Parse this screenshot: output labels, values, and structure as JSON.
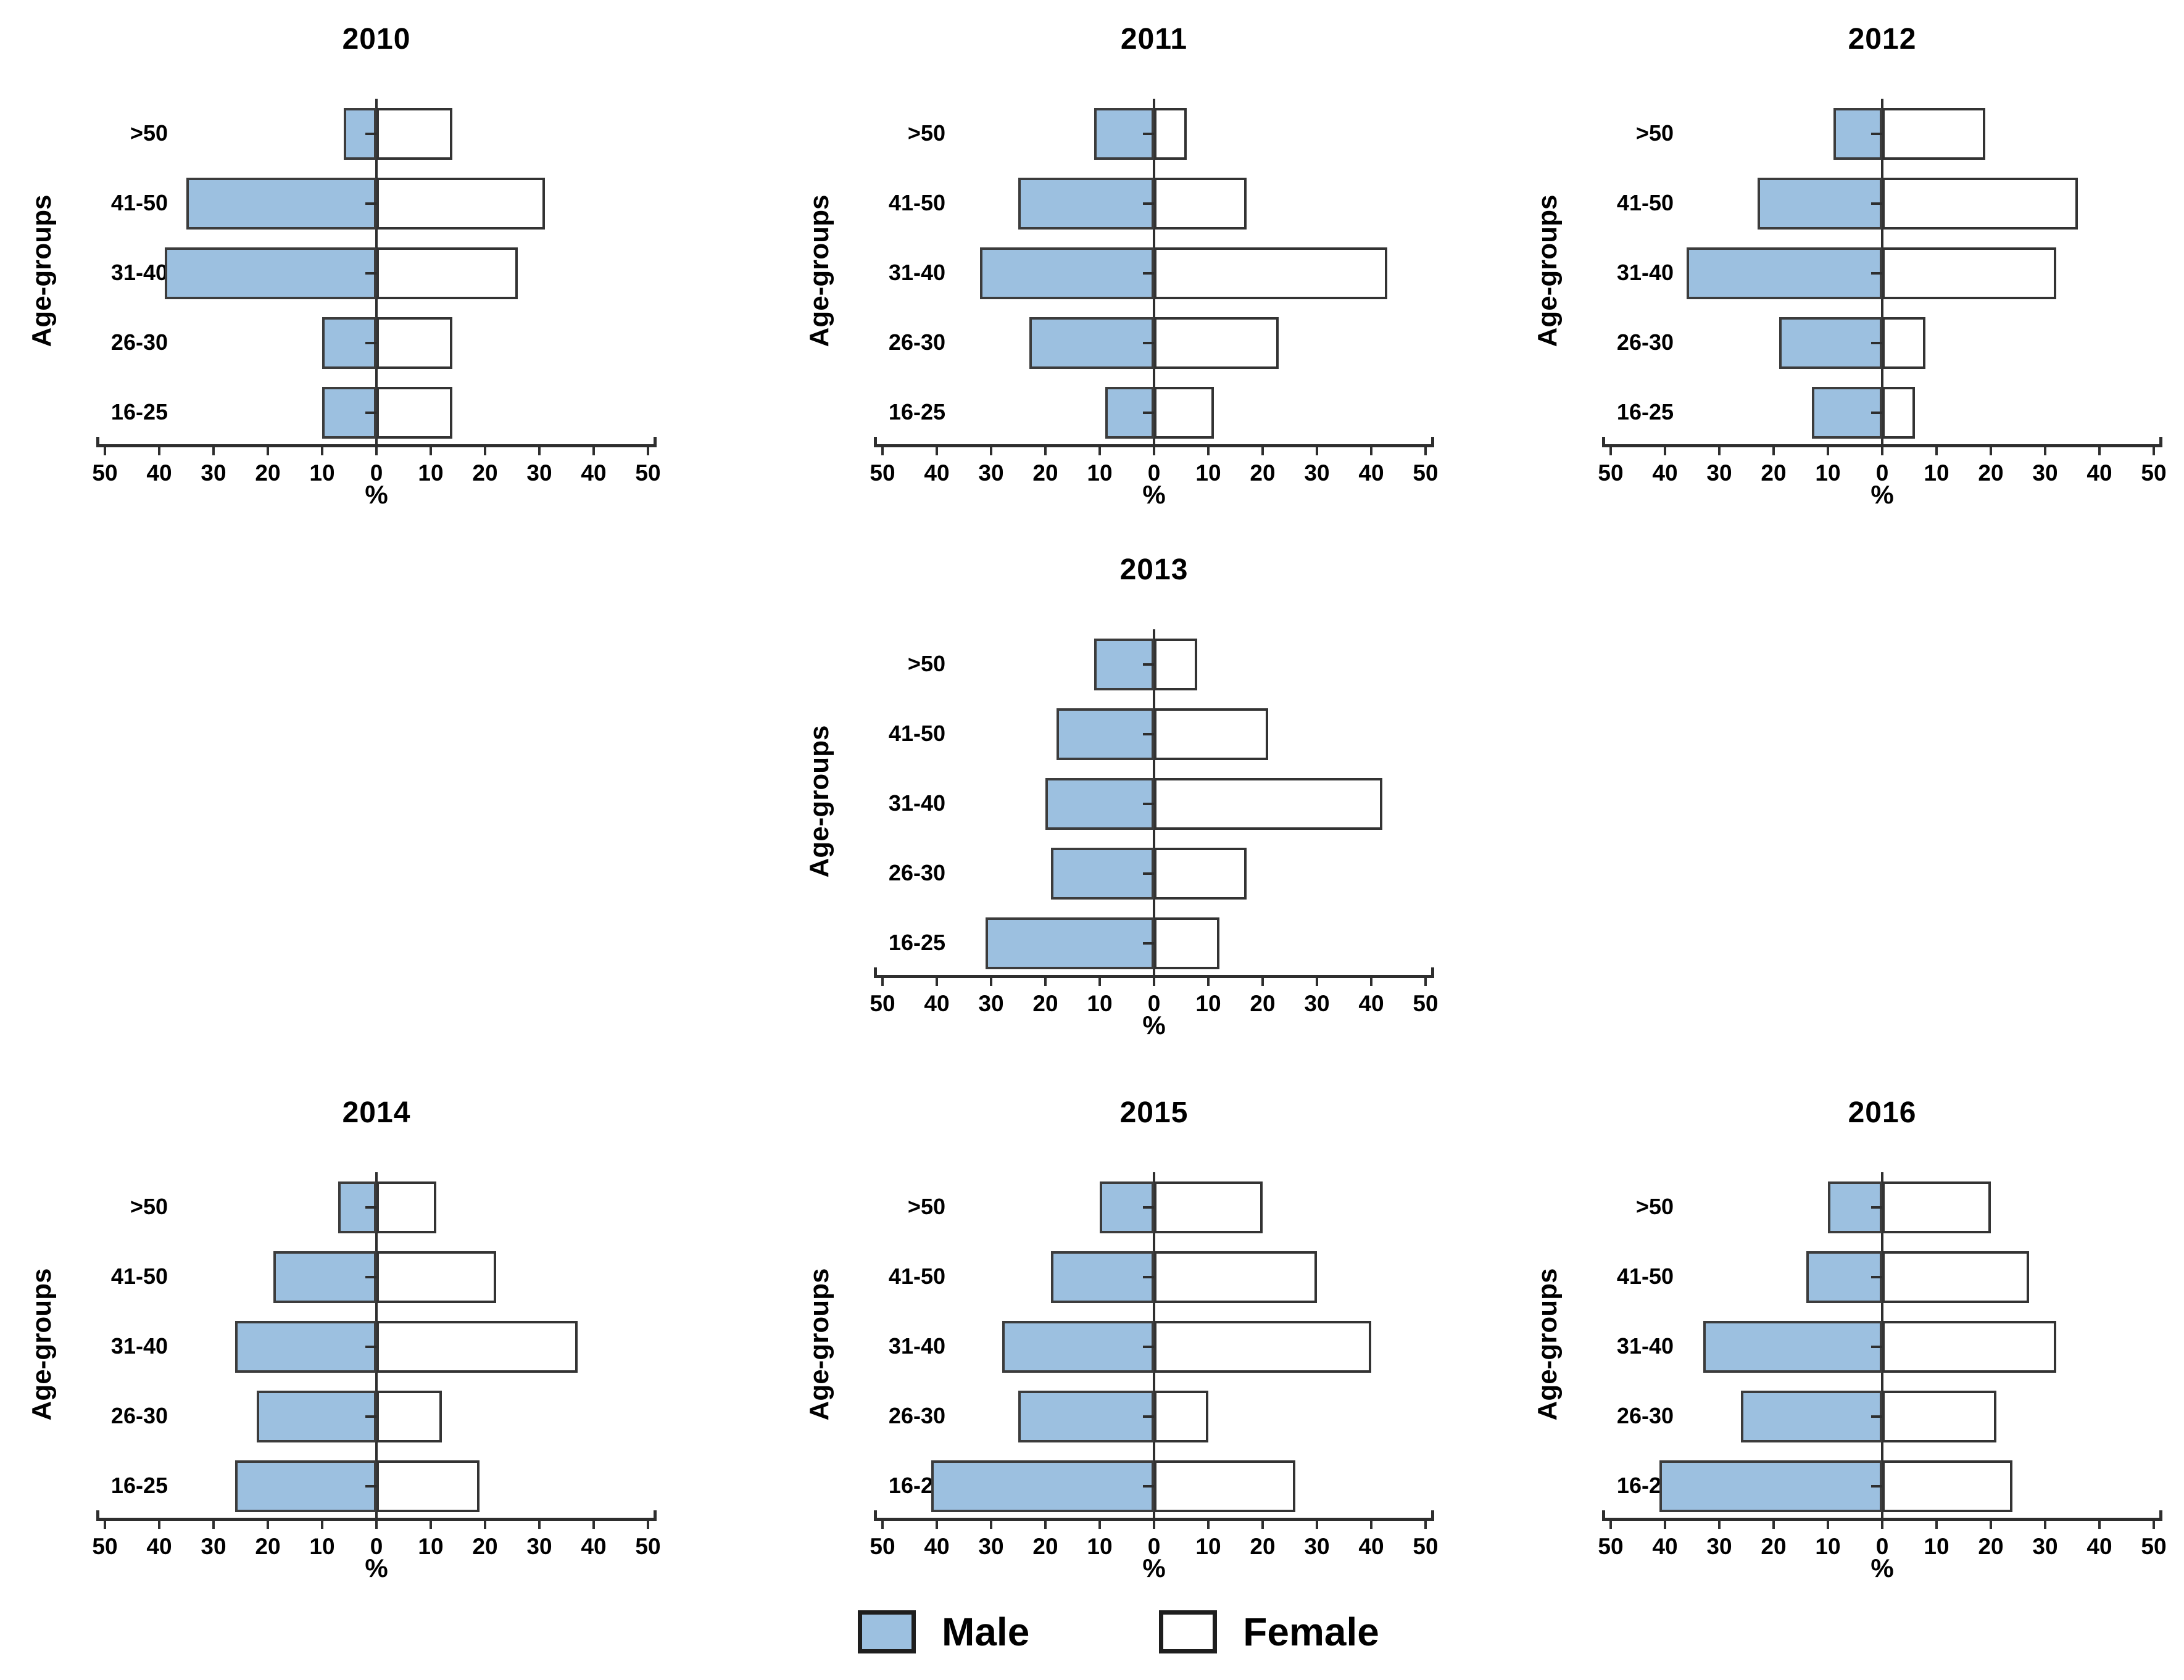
{
  "colors": {
    "male_fill": "#9cc0e0",
    "female_fill": "#ffffff",
    "bar_border": "#3c3c3c",
    "axis": "#2e2e2e",
    "text": "#000000",
    "background": "#ffffff"
  },
  "axis": {
    "tick_values": [
      "50",
      "40",
      "30",
      "20",
      "10",
      "0",
      "10",
      "20",
      "30",
      "40",
      "50"
    ],
    "xlabel": "%",
    "ylabel": "Age-groups",
    "xlim": [
      -50,
      50
    ],
    "grid": false
  },
  "legend": {
    "male_label": "Male",
    "female_label": "Female",
    "position": "bottom-center"
  },
  "chart_data": [
    {
      "type": "bar",
      "title": "2010",
      "orientation": "population-pyramid",
      "categories": [
        ">50",
        "41-50",
        "31-40",
        "26-30",
        "16-25"
      ],
      "series": [
        {
          "name": "Male",
          "side": "left",
          "values": [
            6,
            35,
            39,
            10,
            10
          ]
        },
        {
          "name": "Female",
          "side": "right",
          "values": [
            14,
            31,
            26,
            14,
            14
          ]
        }
      ],
      "xlabel": "%",
      "ylabel": "Age-groups",
      "xlim": [
        -50,
        50
      ]
    },
    {
      "type": "bar",
      "title": "2011",
      "orientation": "population-pyramid",
      "categories": [
        ">50",
        "41-50",
        "31-40",
        "26-30",
        "16-25"
      ],
      "series": [
        {
          "name": "Male",
          "side": "left",
          "values": [
            11,
            25,
            32,
            23,
            9
          ]
        },
        {
          "name": "Female",
          "side": "right",
          "values": [
            6,
            17,
            43,
            23,
            11
          ]
        }
      ],
      "xlabel": "%",
      "ylabel": "Age-groups",
      "xlim": [
        -50,
        50
      ]
    },
    {
      "type": "bar",
      "title": "2012",
      "orientation": "population-pyramid",
      "categories": [
        ">50",
        "41-50",
        "31-40",
        "26-30",
        "16-25"
      ],
      "series": [
        {
          "name": "Male",
          "side": "left",
          "values": [
            9,
            23,
            36,
            19,
            13
          ]
        },
        {
          "name": "Female",
          "side": "right",
          "values": [
            19,
            36,
            32,
            8,
            6
          ]
        }
      ],
      "xlabel": "%",
      "ylabel": "Age-groups",
      "xlim": [
        -50,
        50
      ]
    },
    {
      "type": "bar",
      "title": "2013",
      "orientation": "population-pyramid",
      "categories": [
        ">50",
        "41-50",
        "31-40",
        "26-30",
        "16-25"
      ],
      "series": [
        {
          "name": "Male",
          "side": "left",
          "values": [
            11,
            18,
            20,
            19,
            31
          ]
        },
        {
          "name": "Female",
          "side": "right",
          "values": [
            8,
            21,
            42,
            17,
            12
          ]
        }
      ],
      "xlabel": "%",
      "ylabel": "Age-groups",
      "xlim": [
        -50,
        50
      ]
    },
    {
      "type": "bar",
      "title": "2014",
      "orientation": "population-pyramid",
      "categories": [
        ">50",
        "41-50",
        "31-40",
        "26-30",
        "16-25"
      ],
      "series": [
        {
          "name": "Male",
          "side": "left",
          "values": [
            7,
            19,
            26,
            22,
            26
          ]
        },
        {
          "name": "Female",
          "side": "right",
          "values": [
            11,
            22,
            37,
            12,
            19
          ]
        }
      ],
      "xlabel": "%",
      "ylabel": "Age-groups",
      "xlim": [
        -50,
        50
      ]
    },
    {
      "type": "bar",
      "title": "2015",
      "orientation": "population-pyramid",
      "categories": [
        ">50",
        "41-50",
        "31-40",
        "26-30",
        "16-25"
      ],
      "series": [
        {
          "name": "Male",
          "side": "left",
          "values": [
            10,
            19,
            28,
            25,
            41
          ]
        },
        {
          "name": "Female",
          "side": "right",
          "values": [
            20,
            30,
            40,
            10,
            26
          ]
        }
      ],
      "xlabel": "%",
      "ylabel": "Age-groups",
      "xlim": [
        -50,
        50
      ]
    },
    {
      "type": "bar",
      "title": "2016",
      "orientation": "population-pyramid",
      "categories": [
        ">50",
        "41-50",
        "31-40",
        "26-30",
        "16-25"
      ],
      "series": [
        {
          "name": "Male",
          "side": "left",
          "values": [
            10,
            14,
            33,
            26,
            41
          ]
        },
        {
          "name": "Female",
          "side": "right",
          "values": [
            20,
            27,
            32,
            21,
            24
          ]
        }
      ],
      "xlabel": "%",
      "ylabel": "Age-groups",
      "xlim": [
        -50,
        50
      ]
    }
  ]
}
